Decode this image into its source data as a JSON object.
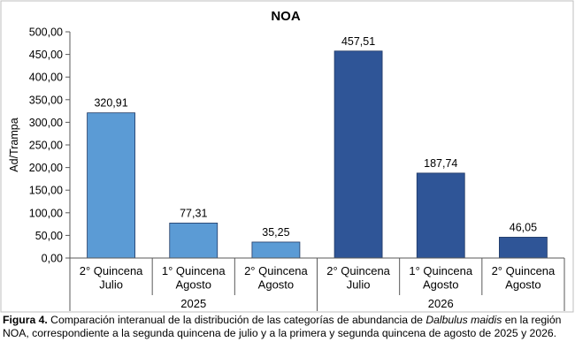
{
  "chart_data": {
    "type": "bar",
    "title": "NOA",
    "ylabel": "Ad/Trampa",
    "xlabel": "",
    "ylim": [
      0,
      500
    ],
    "yticks": [
      0,
      50,
      100,
      150,
      200,
      250,
      300,
      350,
      400,
      450,
      500
    ],
    "ytick_labels": [
      "0,00",
      "50,00",
      "100,00",
      "150,00",
      "200,00",
      "250,00",
      "300,00",
      "350,00",
      "400,00",
      "450,00",
      "500,00"
    ],
    "grid": false,
    "legend": "none",
    "groups": [
      "2025",
      "2026"
    ],
    "categories": [
      [
        "2° Quincena",
        "Julio"
      ],
      [
        "1° Quincena",
        "Agosto"
      ],
      [
        "2° Quincena",
        "Agosto"
      ],
      [
        "2° Quincena",
        "Julio"
      ],
      [
        "1° Quincena",
        "Agosto"
      ],
      [
        "2° Quincena",
        "Agosto"
      ]
    ],
    "category_group": [
      0,
      0,
      0,
      1,
      1,
      1
    ],
    "values": [
      320.91,
      77.31,
      35.25,
      457.51,
      187.74,
      46.05
    ],
    "value_labels": [
      "320,91",
      "77,31",
      "35,25",
      "457,51",
      "187,74",
      "46,05"
    ],
    "colors": [
      "#5b9bd5",
      "#5b9bd5",
      "#5b9bd5",
      "#2f5597",
      "#2f5597",
      "#2f5597"
    ],
    "frame_color": "#bfbfbf"
  },
  "caption": {
    "label": "Figura 4.",
    "text_before": " Comparación interanual de la distribución de las categorías de abundancia de ",
    "species": "Dalbulus maidis",
    "text_after": " en la región NOA, correspondiente a la segunda quincena de julio y a la primera y segunda quincena de agosto de 2025 y 2026."
  }
}
